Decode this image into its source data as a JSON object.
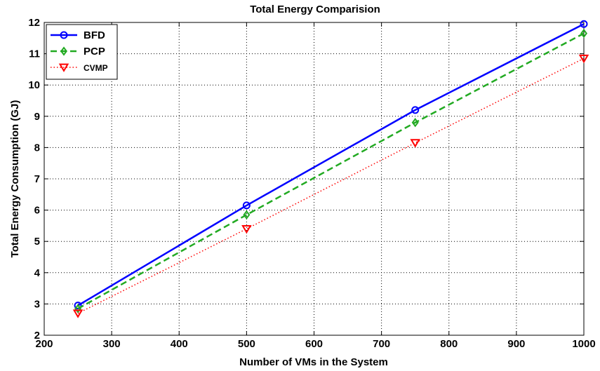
{
  "chart_data": {
    "type": "line",
    "title": "Total Energy Comparision",
    "xlabel": "Number of VMs in the System",
    "ylabel": "Total Energy Consumption (GJ)",
    "xlim": [
      200,
      1000
    ],
    "ylim": [
      2,
      12
    ],
    "xticks": [
      200,
      300,
      400,
      500,
      600,
      700,
      800,
      900,
      1000
    ],
    "yticks": [
      2,
      3,
      4,
      5,
      6,
      7,
      8,
      9,
      10,
      11,
      12
    ],
    "grid": true,
    "grid_style": "dotted",
    "legend_position": "top-left",
    "x": [
      250,
      500,
      750,
      1000
    ],
    "series": [
      {
        "name": "BFD",
        "values": [
          2.95,
          6.15,
          9.2,
          11.95
        ],
        "color": "#0000ff",
        "line": "solid",
        "marker": "circle"
      },
      {
        "name": "PCP",
        "values": [
          2.85,
          5.85,
          8.8,
          11.65
        ],
        "color": "#22aa22",
        "line": "dashed",
        "marker": "diamond"
      },
      {
        "name": "CVMP",
        "values": [
          2.7,
          5.4,
          8.15,
          10.85
        ],
        "color": "#ff0000",
        "line": "dotted",
        "marker": "triangle-down"
      }
    ]
  }
}
